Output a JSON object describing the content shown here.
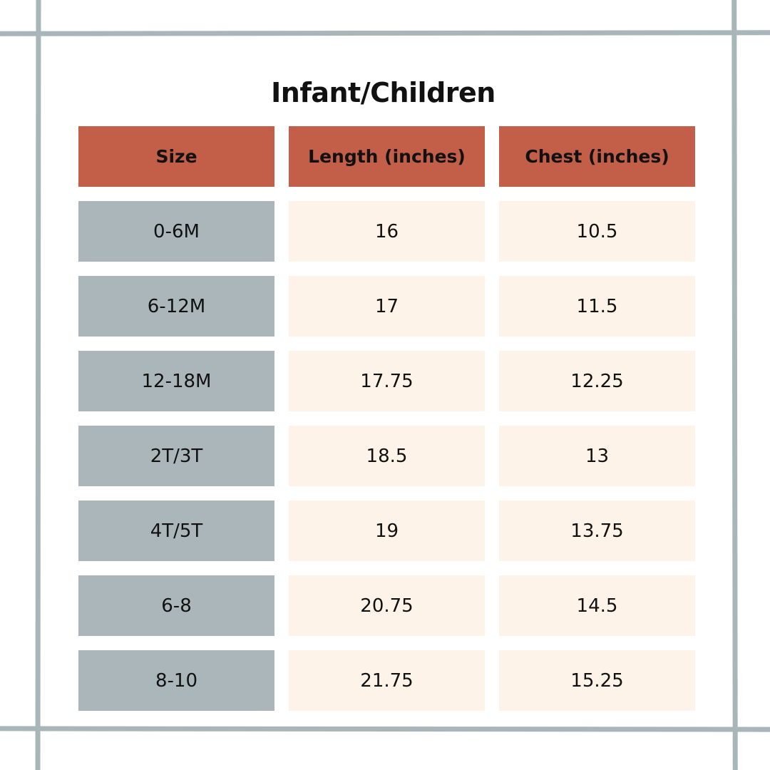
{
  "title": "Infant/Children",
  "colors": {
    "header": "#c35f48",
    "size_column": "#aab6b9",
    "value_cells": "#fef3e8",
    "frame": "#a9b6b9"
  },
  "table": {
    "headers": [
      "Size",
      "Length (inches)",
      "Chest (inches)"
    ],
    "rows": [
      {
        "size": "0-6M",
        "length": "16",
        "chest": "10.5"
      },
      {
        "size": "6-12M",
        "length": "17",
        "chest": "11.5"
      },
      {
        "size": "12-18M",
        "length": "17.75",
        "chest": "12.25"
      },
      {
        "size": "2T/3T",
        "length": "18.5",
        "chest": "13"
      },
      {
        "size": "4T/5T",
        "length": "19",
        "chest": "13.75"
      },
      {
        "size": "6-8",
        "length": "20.75",
        "chest": "14.5"
      },
      {
        "size": "8-10",
        "length": "21.75",
        "chest": "15.25"
      }
    ]
  }
}
